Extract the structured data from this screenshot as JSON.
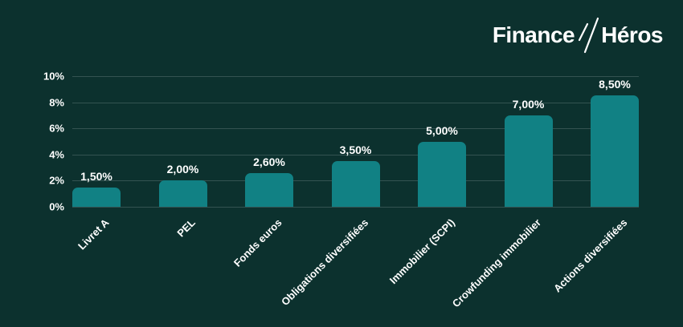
{
  "logo": {
    "part1": "Finance",
    "part2": "Héros",
    "separator_icon": "double-slash-icon"
  },
  "chart_data": {
    "type": "bar",
    "title": "",
    "xlabel": "",
    "ylabel": "",
    "categories": [
      "Livret A",
      "PEL",
      "Fonds euros",
      "Obligations diversifiées",
      "Immobilier (SCPI)",
      "Crowfunding immobilier",
      "Actions diversifiées"
    ],
    "values": [
      1.5,
      2.0,
      2.6,
      3.5,
      5.0,
      7.0,
      8.5
    ],
    "value_labels": [
      "1,50%",
      "2,00%",
      "2,60%",
      "3,50%",
      "5,00%",
      "7,00%",
      "8,50%"
    ],
    "yticks": [
      0,
      2,
      4,
      6,
      8,
      10
    ],
    "ytick_labels": [
      "0%",
      "2%",
      "4%",
      "6%",
      "8%",
      "10%"
    ],
    "ylim": [
      0,
      10
    ],
    "grid": true,
    "legend": false,
    "xtick_rotation_deg": -45,
    "colors": {
      "background": "#0c312e",
      "bar": "#118184",
      "text": "#ffffff",
      "gridline": "rgba(255,255,255,0.17)"
    }
  }
}
